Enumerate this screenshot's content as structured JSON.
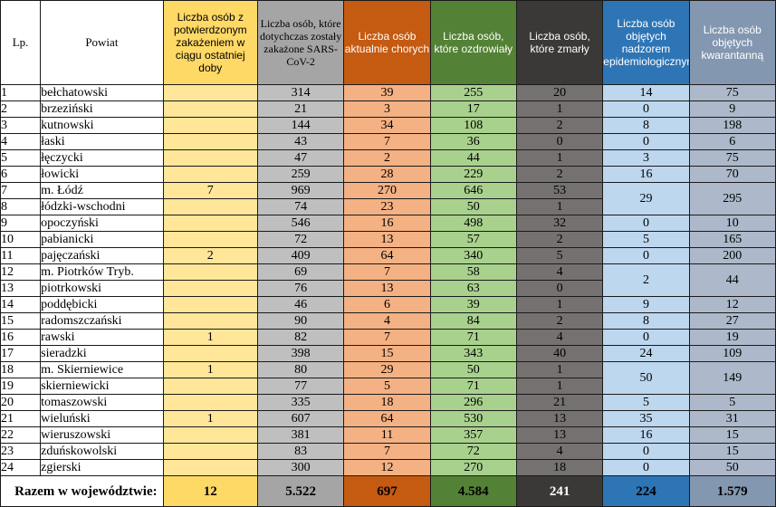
{
  "headers": {
    "lp": "Lp.",
    "powiat": "Powiat",
    "new_cases": "Liczba osób z potwierdzonym zakażeniem w ciągu ostatniej doby",
    "total_cases": "Liczba osób, które dotychczas zostały zakażone SARS-CoV-2",
    "active": "Liczba osób aktualnie chorych",
    "recovered": "Liczba osób, które ozdrowiały",
    "deaths": "Liczba osób, które zmarły",
    "supervision": "Liczba osób objętych nadzorem epidemiologicznym",
    "quarantine": "Liczba osób objętych kwarantanną"
  },
  "rows": [
    {
      "lp": "1",
      "name": "bełchatowski",
      "new": "",
      "total": "314",
      "sick": "39",
      "rec": "255",
      "dead": "20",
      "sup": "14",
      "quar": "75"
    },
    {
      "lp": "2",
      "name": "brzeziński",
      "new": "",
      "total": "21",
      "sick": "3",
      "rec": "17",
      "dead": "1",
      "sup": "0",
      "quar": "9"
    },
    {
      "lp": "3",
      "name": "kutnowski",
      "new": "",
      "total": "144",
      "sick": "34",
      "rec": "108",
      "dead": "2",
      "sup": "8",
      "quar": "198"
    },
    {
      "lp": "4",
      "name": "łaski",
      "new": "",
      "total": "43",
      "sick": "7",
      "rec": "36",
      "dead": "0",
      "sup": "0",
      "quar": "6"
    },
    {
      "lp": "5",
      "name": "łęczycki",
      "new": "",
      "total": "47",
      "sick": "2",
      "rec": "44",
      "dead": "1",
      "sup": "3",
      "quar": "75"
    },
    {
      "lp": "6",
      "name": "łowicki",
      "new": "",
      "total": "259",
      "sick": "28",
      "rec": "229",
      "dead": "2",
      "sup": "16",
      "quar": "70"
    },
    {
      "lp": "7",
      "name": "m. Łódź",
      "new": "7",
      "total": "969",
      "sick": "270",
      "rec": "646",
      "dead": "53",
      "sup": "29",
      "quar": "295"
    },
    {
      "lp": "8",
      "name": "łódzki-wschodni",
      "new": "",
      "total": "74",
      "sick": "23",
      "rec": "50",
      "dead": "1"
    },
    {
      "lp": "9",
      "name": "opoczyński",
      "new": "",
      "total": "546",
      "sick": "16",
      "rec": "498",
      "dead": "32",
      "sup": "0",
      "quar": "10"
    },
    {
      "lp": "10",
      "name": "pabianicki",
      "new": "",
      "total": "72",
      "sick": "13",
      "rec": "57",
      "dead": "2",
      "sup": "5",
      "quar": "165"
    },
    {
      "lp": "11",
      "name": "pajęczański",
      "new": "2",
      "total": "409",
      "sick": "64",
      "rec": "340",
      "dead": "5",
      "sup": "0",
      "quar": "200"
    },
    {
      "lp": "12",
      "name": "m. Piotrków Tryb.",
      "new": "",
      "total": "69",
      "sick": "7",
      "rec": "58",
      "dead": "4",
      "sup": "2",
      "quar": "44"
    },
    {
      "lp": "13",
      "name": "piotrkowski",
      "new": "",
      "total": "76",
      "sick": "13",
      "rec": "63",
      "dead": "0"
    },
    {
      "lp": "14",
      "name": "poddębicki",
      "new": "",
      "total": "46",
      "sick": "6",
      "rec": "39",
      "dead": "1",
      "sup": "9",
      "quar": "12"
    },
    {
      "lp": "15",
      "name": "radomszczański",
      "new": "",
      "total": "90",
      "sick": "4",
      "rec": "84",
      "dead": "2",
      "sup": "8",
      "quar": "27"
    },
    {
      "lp": "16",
      "name": "rawski",
      "new": "1",
      "total": "82",
      "sick": "7",
      "rec": "71",
      "dead": "4",
      "sup": "0",
      "quar": "19"
    },
    {
      "lp": "17",
      "name": "sieradzki",
      "new": "",
      "total": "398",
      "sick": "15",
      "rec": "343",
      "dead": "40",
      "sup": "24",
      "quar": "109"
    },
    {
      "lp": "18",
      "name": "m. Skierniewice",
      "new": "1",
      "total": "80",
      "sick": "29",
      "rec": "50",
      "dead": "1",
      "sup": "50",
      "quar": "149"
    },
    {
      "lp": "19",
      "name": "skierniewicki",
      "new": "",
      "total": "77",
      "sick": "5",
      "rec": "71",
      "dead": "1"
    },
    {
      "lp": "20",
      "name": "tomaszowski",
      "new": "",
      "total": "335",
      "sick": "18",
      "rec": "296",
      "dead": "21",
      "sup": "5",
      "quar": "5"
    },
    {
      "lp": "21",
      "name": "wieluński",
      "new": "1",
      "total": "607",
      "sick": "64",
      "rec": "530",
      "dead": "13",
      "sup": "35",
      "quar": "31"
    },
    {
      "lp": "22",
      "name": "wieruszowski",
      "new": "",
      "total": "381",
      "sick": "11",
      "rec": "357",
      "dead": "13",
      "sup": "16",
      "quar": "15"
    },
    {
      "lp": "23",
      "name": "zduńskowolski",
      "new": "",
      "total": "83",
      "sick": "7",
      "rec": "72",
      "dead": "4",
      "sup": "0",
      "quar": "15"
    },
    {
      "lp": "24",
      "name": "zgierski",
      "new": "",
      "total": "300",
      "sick": "12",
      "rec": "270",
      "dead": "18",
      "sup": "0",
      "quar": "50"
    }
  ],
  "merged_rows": [
    7,
    12,
    18
  ],
  "summary": {
    "label": "Razem w województwie:",
    "new": "12",
    "total": "5.522",
    "sick": "697",
    "rec": "4.584",
    "dead": "241",
    "sup": "224",
    "quar": "1.579"
  }
}
